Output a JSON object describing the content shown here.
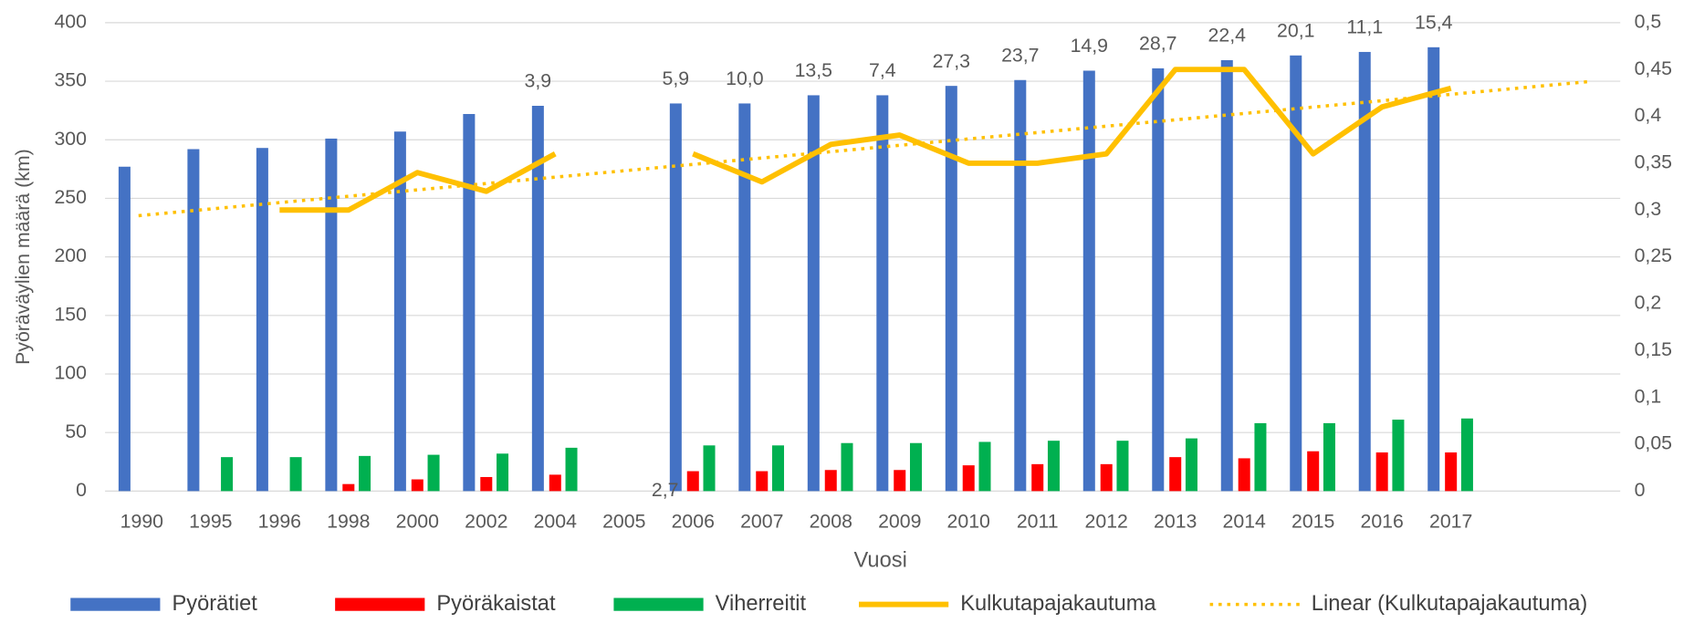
{
  "chart_data": {
    "type": "bar",
    "categories": [
      "1990",
      "1995",
      "1996",
      "1998",
      "2000",
      "2002",
      "2004",
      "2005",
      "2006",
      "2007",
      "2008",
      "2009",
      "2010",
      "2011",
      "2012",
      "2013",
      "2014",
      "2015",
      "2016",
      "2017"
    ],
    "series": [
      {
        "name": "Pyörätiet",
        "color": "#4472c4",
        "values": [
          277,
          292,
          293,
          301,
          307,
          322,
          329,
          null,
          331,
          331,
          338,
          338,
          346,
          351,
          359,
          361,
          368,
          372,
          375,
          379
        ]
      },
      {
        "name": "Pyöräkaistat",
        "color": "#ff0000",
        "values": [
          null,
          null,
          null,
          6,
          10,
          12,
          14,
          null,
          17,
          17,
          18,
          18,
          22,
          23,
          23,
          29,
          28,
          34,
          33,
          33
        ]
      },
      {
        "name": "Viherreitit",
        "color": "#00b050",
        "values": [
          null,
          29,
          29,
          30,
          31,
          32,
          37,
          null,
          39,
          39,
          41,
          41,
          42,
          43,
          43,
          45,
          58,
          58,
          61,
          62
        ]
      },
      {
        "name": "Kulkutapajakautuma",
        "color": "#ffc000",
        "type": "line",
        "axis": "y2",
        "values": [
          null,
          null,
          0.3,
          0.3,
          0.34,
          0.32,
          0.36,
          null,
          0.36,
          0.33,
          0.37,
          0.38,
          0.35,
          0.35,
          0.36,
          0.45,
          0.45,
          0.36,
          0.41,
          0.43
        ]
      }
    ],
    "trendline": {
      "name": "Linear (Kulkutapajakautuma)",
      "color": "#ffc000",
      "axis": "y2",
      "values": [
        0.294,
        0.437
      ]
    },
    "data_labels": [
      null,
      null,
      null,
      null,
      null,
      null,
      "3,9",
      "2,7",
      "5,9",
      "10,0",
      "13,5",
      "7,4",
      "27,3",
      "23,7",
      "14,9",
      "28,7",
      "22,4",
      "20,1",
      "11,1",
      "15,4"
    ],
    "ylabel": "Pyöräväylien määrä (km)",
    "xlabel": "Vuosi",
    "ylim": [
      0,
      400
    ],
    "yticks": [
      0,
      50,
      100,
      150,
      200,
      250,
      300,
      350,
      400
    ],
    "y2lim": [
      0,
      0.5
    ],
    "y2ticks": [
      0,
      {
        "value": 0.05,
        "label": "0,05"
      },
      {
        "value": 0.1,
        "label": "0,1"
      },
      {
        "value": 0.15,
        "label": "0,15"
      },
      {
        "value": 0.2,
        "label": "0,2"
      },
      {
        "value": 0.25,
        "label": "0,25"
      },
      {
        "value": 0.3,
        "label": "0,3"
      },
      {
        "value": 0.35,
        "label": "0,35"
      },
      {
        "value": 0.4,
        "label": "0,4"
      },
      {
        "value": 0.45,
        "label": "0,45"
      },
      {
        "value": 0.5,
        "label": "0,5"
      }
    ],
    "grid": true,
    "legend": "bottom"
  }
}
